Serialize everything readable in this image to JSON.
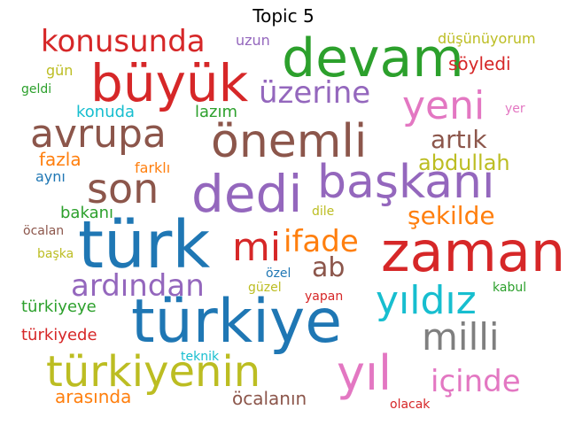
{
  "chart_data": {
    "type": "wordcloud",
    "title": "Topic 5",
    "words": [
      {
        "text": "türkiye",
        "color": "#1f77b4"
      },
      {
        "text": "türk",
        "color": "#1f77b4"
      },
      {
        "text": "zaman",
        "color": "#d62728"
      },
      {
        "text": "devam",
        "color": "#2ca02c"
      },
      {
        "text": "büyük",
        "color": "#d62728"
      },
      {
        "text": "dedi",
        "color": "#9467bd"
      },
      {
        "text": "başkanı",
        "color": "#9467bd"
      },
      {
        "text": "önemli",
        "color": "#8c564b"
      },
      {
        "text": "türkiyenin",
        "color": "#bcbd22"
      },
      {
        "text": "yıl",
        "color": "#e377c2"
      },
      {
        "text": "milli",
        "color": "#7f7f7f"
      },
      {
        "text": "yıldız",
        "color": "#17becf"
      },
      {
        "text": "avrupa",
        "color": "#8c564b"
      },
      {
        "text": "son",
        "color": "#8c564b"
      },
      {
        "text": "yeni",
        "color": "#e377c2"
      },
      {
        "text": "konusunda",
        "color": "#d62728"
      },
      {
        "text": "mi",
        "color": "#d62728"
      },
      {
        "text": "ardından",
        "color": "#9467bd"
      },
      {
        "text": "üzerine",
        "color": "#9467bd"
      },
      {
        "text": "ifade",
        "color": "#ff7f0e"
      },
      {
        "text": "içinde",
        "color": "#e377c2"
      },
      {
        "text": "ab",
        "color": "#8c564b"
      },
      {
        "text": "artık",
        "color": "#8c564b"
      },
      {
        "text": "şekilde",
        "color": "#ff7f0e"
      },
      {
        "text": "abdullah",
        "color": "#bcbd22"
      },
      {
        "text": "arasında",
        "color": "#ff7f0e"
      },
      {
        "text": "öcalanın",
        "color": "#8c564b"
      },
      {
        "text": "söyledi",
        "color": "#d62728"
      },
      {
        "text": "fazla",
        "color": "#ff7f0e"
      },
      {
        "text": "konuda",
        "color": "#17becf"
      },
      {
        "text": "lazım",
        "color": "#2ca02c"
      },
      {
        "text": "türkiyeye",
        "color": "#2ca02c"
      },
      {
        "text": "türkiyede",
        "color": "#d62728"
      },
      {
        "text": "bakanı",
        "color": "#2ca02c"
      },
      {
        "text": "düşünüyorum",
        "color": "#bcbd22"
      },
      {
        "text": "uzun",
        "color": "#9467bd"
      },
      {
        "text": "gün",
        "color": "#bcbd22"
      },
      {
        "text": "geldi",
        "color": "#2ca02c"
      },
      {
        "text": "farklı",
        "color": "#ff7f0e"
      },
      {
        "text": "aynı",
        "color": "#1f77b4"
      },
      {
        "text": "öcalan",
        "color": "#8c564b"
      },
      {
        "text": "başka",
        "color": "#bcbd22"
      },
      {
        "text": "yer",
        "color": "#e377c2"
      },
      {
        "text": "dile",
        "color": "#bcbd22"
      },
      {
        "text": "özel",
        "color": "#1f77b4"
      },
      {
        "text": "güzel",
        "color": "#bcbd22"
      },
      {
        "text": "yapan",
        "color": "#d62728"
      },
      {
        "text": "kabul",
        "color": "#2ca02c"
      },
      {
        "text": "teknik",
        "color": "#17becf"
      },
      {
        "text": "olacak",
        "color": "#d62728"
      }
    ]
  }
}
